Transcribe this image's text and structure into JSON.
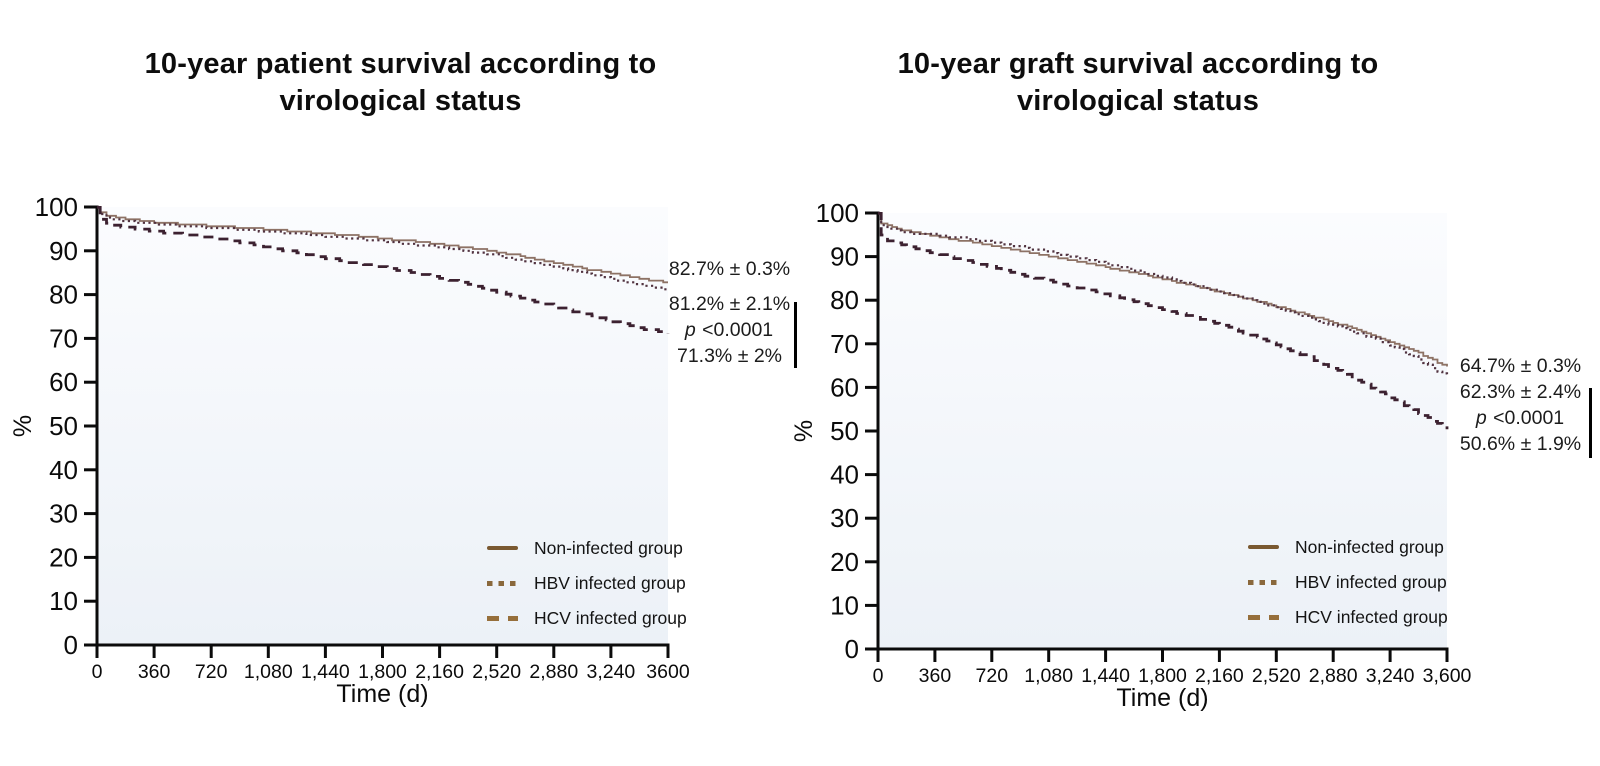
{
  "figure": {
    "background": "#ffffff",
    "axis_color": "#0b0b0b"
  },
  "chart_data": [
    {
      "type": "line",
      "title_lines": [
        "10-year patient survival according to",
        "virological status"
      ],
      "xlabel": "Time (d)",
      "ylabel": "%",
      "xlim": [
        0,
        3600
      ],
      "ylim": [
        0,
        100
      ],
      "grid": false,
      "legend_position": "lower right",
      "x_tick_values": [
        0,
        360,
        720,
        1080,
        1440,
        1800,
        2160,
        2520,
        2880,
        3240,
        3600
      ],
      "x_tick_labels": [
        "0",
        "360",
        "720",
        "1,080",
        "1,440",
        "1,800",
        "2,160",
        "2,520",
        "2,880",
        "3,240",
        "3600"
      ],
      "y_ticks": [
        0,
        10,
        20,
        30,
        40,
        50,
        60,
        70,
        80,
        90,
        100
      ],
      "y_tick_labels": [
        "0",
        "10",
        "20",
        "30",
        "40",
        "50",
        "60",
        "70",
        "80",
        "90",
        "100"
      ],
      "series": [
        {
          "name": "Non-infected group",
          "style": "solid",
          "color": "#8d7265",
          "width": 1.8,
          "dash": "none",
          "step": 0.4,
          "final_value": "82.7% ± 0.3%",
          "points": [
            [
              0,
              100
            ],
            [
              20,
              98.8
            ],
            [
              60,
              98.1
            ],
            [
              120,
              97.6
            ],
            [
              240,
              97.0
            ],
            [
              360,
              96.6
            ],
            [
              540,
              96.1
            ],
            [
              720,
              95.7
            ],
            [
              900,
              95.3
            ],
            [
              1080,
              94.9
            ],
            [
              1260,
              94.4
            ],
            [
              1440,
              93.9
            ],
            [
              1620,
              93.4
            ],
            [
              1800,
              92.8
            ],
            [
              1980,
              92.2
            ],
            [
              2160,
              91.5
            ],
            [
              2340,
              90.7
            ],
            [
              2520,
              89.8
            ],
            [
              2700,
              88.6
            ],
            [
              2880,
              87.3
            ],
            [
              3060,
              86.0
            ],
            [
              3240,
              84.8
            ],
            [
              3420,
              83.7
            ],
            [
              3600,
              82.7
            ]
          ]
        },
        {
          "name": "HBV infected group",
          "style": "dotted",
          "color": "#513340",
          "width": 2.2,
          "dash": "2.2 3.4",
          "step": 0.4,
          "final_value": "81.2% ± 2.1%",
          "points": [
            [
              0,
              100
            ],
            [
              20,
              98.3
            ],
            [
              60,
              97.6
            ],
            [
              120,
              97.1
            ],
            [
              240,
              96.6
            ],
            [
              360,
              96.2
            ],
            [
              540,
              95.7
            ],
            [
              720,
              95.3
            ],
            [
              900,
              94.9
            ],
            [
              1080,
              94.4
            ],
            [
              1260,
              93.9
            ],
            [
              1440,
              93.3
            ],
            [
              1800,
              92.2
            ],
            [
              2160,
              90.8
            ],
            [
              2520,
              89.0
            ],
            [
              2880,
              86.5
            ],
            [
              3060,
              85.0
            ],
            [
              3240,
              83.6
            ],
            [
              3420,
              82.2
            ],
            [
              3600,
              81.2
            ]
          ]
        },
        {
          "name": "HCV infected group",
          "style": "dashed",
          "color": "#3c2130",
          "width": 2.8,
          "dash": "10 7",
          "step": 0.45,
          "final_value": "71.3% ± 2%",
          "points": [
            [
              0,
              100
            ],
            [
              20,
              97.2
            ],
            [
              60,
              96.3
            ],
            [
              120,
              95.7
            ],
            [
              240,
              95.0
            ],
            [
              360,
              94.5
            ],
            [
              540,
              93.8
            ],
            [
              720,
              93.0
            ],
            [
              900,
              92.0
            ],
            [
              1080,
              90.8
            ],
            [
              1260,
              89.6
            ],
            [
              1440,
              88.4
            ],
            [
              1620,
              87.3
            ],
            [
              1800,
              86.2
            ],
            [
              1980,
              85.1
            ],
            [
              2160,
              83.9
            ],
            [
              2340,
              82.4
            ],
            [
              2520,
              80.6
            ],
            [
              2700,
              79.0
            ],
            [
              2880,
              77.4
            ],
            [
              3060,
              75.7
            ],
            [
              3240,
              74.0
            ],
            [
              3420,
              72.4
            ],
            [
              3600,
              71.3
            ]
          ]
        }
      ],
      "annotations": [
        {
          "it": "",
          "text": "82.7% ± 0.3%"
        },
        {
          "it": "",
          "text": "81.2% ± 2.1%"
        },
        {
          "it": "p",
          "text": " <0.0001"
        },
        {
          "it": "",
          "text": "71.3% ± 2%"
        }
      ],
      "legend": [
        {
          "label": "Non-infected group",
          "style": "solid",
          "color": "#7a5931"
        },
        {
          "label": "HBV infected group",
          "style": "dotted",
          "color": "#8a683c"
        },
        {
          "label": "HCV infected group",
          "style": "dashed",
          "color": "#966f3b"
        }
      ]
    },
    {
      "type": "line",
      "title_lines": [
        "10-year graft survival according to",
        "virological status"
      ],
      "xlabel": "Time (d)",
      "ylabel": "%",
      "xlim": [
        0,
        3600
      ],
      "ylim": [
        0,
        100
      ],
      "grid": false,
      "legend_position": "lower right",
      "x_tick_values": [
        0,
        360,
        720,
        1080,
        1440,
        1800,
        2160,
        2520,
        2880,
        3240,
        3600
      ],
      "x_tick_labels": [
        "0",
        "360",
        "720",
        "1,080",
        "1,440",
        "1,800",
        "2,160",
        "2,520",
        "2,880",
        "3,240",
        "3,600"
      ],
      "y_ticks": [
        0,
        10,
        20,
        30,
        40,
        50,
        60,
        70,
        80,
        90,
        100
      ],
      "y_tick_labels": [
        "0",
        "10",
        "20",
        "30",
        "40",
        "50",
        "60",
        "70",
        "80",
        "90",
        "100"
      ],
      "series": [
        {
          "name": "Non-infected group",
          "style": "solid",
          "color": "#8d7265",
          "width": 1.8,
          "dash": "none",
          "step": 0.4,
          "final_value": "64.7% ± 0.3%",
          "points": [
            [
              0,
              100
            ],
            [
              20,
              97.8
            ],
            [
              60,
              97.0
            ],
            [
              120,
              96.3
            ],
            [
              240,
              95.4
            ],
            [
              360,
              94.7
            ],
            [
              540,
              93.6
            ],
            [
              720,
              92.5
            ],
            [
              900,
              91.3
            ],
            [
              1080,
              90.1
            ],
            [
              1260,
              88.9
            ],
            [
              1440,
              87.6
            ],
            [
              1620,
              86.3
            ],
            [
              1800,
              84.9
            ],
            [
              1980,
              83.4
            ],
            [
              2160,
              81.9
            ],
            [
              2340,
              80.3
            ],
            [
              2520,
              78.6
            ],
            [
              2700,
              76.8
            ],
            [
              2880,
              74.9
            ],
            [
              3060,
              72.9
            ],
            [
              3240,
              70.6
            ],
            [
              3420,
              67.9
            ],
            [
              3600,
              64.7
            ]
          ]
        },
        {
          "name": "HBV infected group",
          "style": "dotted",
          "color": "#513340",
          "width": 2.2,
          "dash": "2.2 3.4",
          "step": 0.4,
          "final_value": "62.3% ± 2.4%",
          "points": [
            [
              0,
              100
            ],
            [
              20,
              97.2
            ],
            [
              60,
              96.5
            ],
            [
              120,
              95.9
            ],
            [
              240,
              95.2
            ],
            [
              360,
              95.0
            ],
            [
              540,
              94.2
            ],
            [
              720,
              93.3
            ],
            [
              900,
              92.2
            ],
            [
              1080,
              91.0
            ],
            [
              1260,
              89.7
            ],
            [
              1440,
              88.4
            ],
            [
              1620,
              86.9
            ],
            [
              1800,
              85.3
            ],
            [
              1980,
              83.6
            ],
            [
              2160,
              82.0
            ],
            [
              2340,
              80.2
            ],
            [
              2520,
              78.3
            ],
            [
              2700,
              76.2
            ],
            [
              2880,
              74.2
            ],
            [
              3060,
              72.2
            ],
            [
              3240,
              69.8
            ],
            [
              3420,
              66.5
            ],
            [
              3600,
              62.3
            ]
          ]
        },
        {
          "name": "HCV infected group",
          "style": "dashed",
          "color": "#3c2130",
          "width": 2.8,
          "dash": "10 7",
          "step": 0.45,
          "final_value": "50.6% ± 1.9%",
          "points": [
            [
              0,
              100
            ],
            [
              20,
              94.8
            ],
            [
              60,
              93.8
            ],
            [
              120,
              93.0
            ],
            [
              240,
              91.8
            ],
            [
              360,
              90.8
            ],
            [
              540,
              89.2
            ],
            [
              720,
              87.6
            ],
            [
              900,
              85.9
            ],
            [
              1080,
              84.4
            ],
            [
              1260,
              82.9
            ],
            [
              1440,
              81.4
            ],
            [
              1620,
              79.6
            ],
            [
              1800,
              77.9
            ],
            [
              1980,
              76.4
            ],
            [
              2160,
              74.4
            ],
            [
              2340,
              72.2
            ],
            [
              2520,
              69.8
            ],
            [
              2700,
              67.3
            ],
            [
              2880,
              64.5
            ],
            [
              3060,
              61.2
            ],
            [
              3240,
              57.7
            ],
            [
              3420,
              54.1
            ],
            [
              3600,
              50.6
            ]
          ]
        }
      ],
      "annotations": [
        {
          "it": "",
          "text": "64.7% ± 0.3%"
        },
        {
          "it": "",
          "text": "62.3% ± 2.4%"
        },
        {
          "it": "p",
          "text": " <0.0001"
        },
        {
          "it": "",
          "text": "50.6% ± 1.9%"
        }
      ],
      "legend": [
        {
          "label": "Non-infected group",
          "style": "solid",
          "color": "#7a5931"
        },
        {
          "label": "HBV infected group",
          "style": "dotted",
          "color": "#8a683c"
        },
        {
          "label": "HCV infected group",
          "style": "dashed",
          "color": "#966f3b"
        }
      ]
    }
  ]
}
